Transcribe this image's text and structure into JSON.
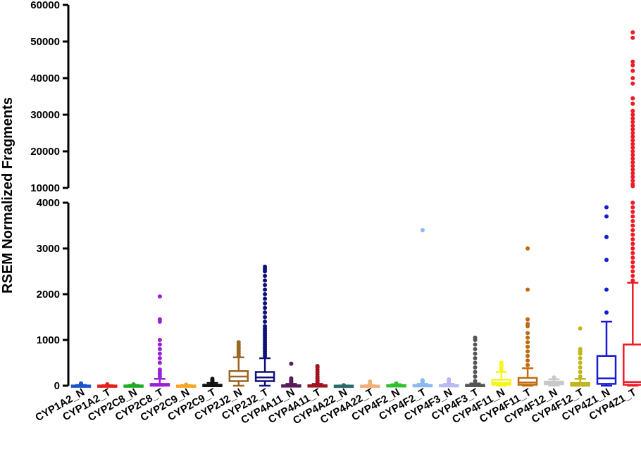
{
  "chart_data": {
    "type": "box",
    "ylabel": "RSEM Normalized Fragments",
    "xlabel": "",
    "y_axis_break": {
      "lower_range": [
        0,
        4000
      ],
      "upper_range": [
        10000,
        60000
      ]
    },
    "lower_ticks": [
      "0",
      "1000",
      "2000",
      "3000",
      "4000"
    ],
    "upper_ticks": [
      "10000",
      "20000",
      "30000",
      "40000",
      "50000",
      "60000"
    ],
    "lower_tick_values": [
      0,
      1000,
      2000,
      3000,
      4000
    ],
    "upper_tick_values": [
      10000,
      20000,
      30000,
      40000,
      50000,
      60000
    ],
    "categories": [
      {
        "label": "CYP1A2_N",
        "color": "#1a56c8",
        "q1": 0,
        "median": 2,
        "q3": 5,
        "whisker_low": 0,
        "whisker_high": 15,
        "outliers": [
          20,
          30,
          40,
          50
        ]
      },
      {
        "label": "CYP1A2_T",
        "color": "#e8201a",
        "q1": 0,
        "median": 2,
        "q3": 5,
        "whisker_low": 0,
        "whisker_high": 10,
        "outliers": [
          20,
          30
        ]
      },
      {
        "label": "CYP2C8_N",
        "color": "#1faa1f",
        "q1": 0,
        "median": 2,
        "q3": 6,
        "whisker_low": 0,
        "whisker_high": 15,
        "outliers": [
          20,
          30
        ]
      },
      {
        "label": "CYP2C8_T",
        "color": "#9b1fd6",
        "q1": 0,
        "median": 10,
        "q3": 40,
        "whisker_low": 0,
        "whisker_high": 150,
        "outliers": [
          200,
          250,
          300,
          350,
          500,
          600,
          700,
          800,
          900,
          1000,
          1400,
          1450,
          1950
        ]
      },
      {
        "label": "CYP2C9_N",
        "color": "#f5a623",
        "q1": 0,
        "median": 2,
        "q3": 5,
        "whisker_low": 0,
        "whisker_high": 12,
        "outliers": [
          20,
          25
        ]
      },
      {
        "label": "CYP2C9_T",
        "color": "#111111",
        "q1": 0,
        "median": 5,
        "q3": 20,
        "whisker_low": 0,
        "whisker_high": 60,
        "outliers": [
          80,
          100,
          120,
          150
        ]
      },
      {
        "label": "CYP2J2_N",
        "color": "#9a6620",
        "q1": 100,
        "median": 200,
        "q3": 320,
        "whisker_low": 0,
        "whisker_high": 620,
        "outliers": [
          650,
          700,
          750,
          800,
          850,
          900,
          950
        ]
      },
      {
        "label": "CYP2J2_T",
        "color": "#10107a",
        "q1": 100,
        "median": 180,
        "q3": 300,
        "whisker_low": 0,
        "whisker_high": 600,
        "outliers": [
          650,
          700,
          750,
          800,
          850,
          900,
          950,
          1000,
          1050,
          1100,
          1150,
          1200,
          1250,
          1300,
          1400,
          1500,
          1600,
          1700,
          1800,
          1900,
          2000,
          2100,
          2200,
          2300,
          2400,
          2500,
          2550,
          2600
        ]
      },
      {
        "label": "CYP4A11_N",
        "color": "#5a1a5a",
        "q1": 0,
        "median": 2,
        "q3": 10,
        "whisker_low": 0,
        "whisker_high": 40,
        "outliers": [
          80,
          120,
          160,
          480
        ]
      },
      {
        "label": "CYP4A11_T",
        "color": "#a0141e",
        "q1": 0,
        "median": 2,
        "q3": 10,
        "whisker_low": 0,
        "whisker_high": 40,
        "outliers": [
          80,
          120,
          160,
          200,
          250,
          300,
          350,
          400,
          430
        ]
      },
      {
        "label": "CYP4A22_N",
        "color": "#2a6a6a",
        "q1": 0,
        "median": 1,
        "q3": 2,
        "whisker_low": 0,
        "whisker_high": 5,
        "outliers": [
          10
        ]
      },
      {
        "label": "CYP4A22_T",
        "color": "#f0b07a",
        "q1": 0,
        "median": 1,
        "q3": 3,
        "whisker_low": 0,
        "whisker_high": 10,
        "outliers": [
          40,
          70,
          90
        ]
      },
      {
        "label": "CYP4F2_N",
        "color": "#2ec02e",
        "q1": 0,
        "median": 5,
        "q3": 12,
        "whisker_low": 0,
        "whisker_high": 30,
        "outliers": [
          40,
          50
        ]
      },
      {
        "label": "CYP4F2_T",
        "color": "#8ab8f0",
        "q1": 0,
        "median": 5,
        "q3": 15,
        "whisker_low": 0,
        "whisker_high": 40,
        "outliers": [
          60,
          80,
          100,
          120,
          3400
        ]
      },
      {
        "label": "CYP4F3_N",
        "color": "#b8b8f5",
        "q1": 0,
        "median": 5,
        "q3": 15,
        "whisker_low": 0,
        "whisker_high": 40,
        "outliers": [
          60,
          80,
          100,
          120,
          140
        ]
      },
      {
        "label": "CYP4F3_T",
        "color": "#555555",
        "q1": 0,
        "median": 5,
        "q3": 20,
        "whisker_low": 0,
        "whisker_high": 50,
        "outliers": [
          100,
          200,
          300,
          400,
          500,
          600,
          700,
          800,
          900,
          1000,
          1050
        ]
      },
      {
        "label": "CYP4F11_N",
        "color": "#f5f51a",
        "q1": 20,
        "median": 60,
        "q3": 130,
        "whisker_low": 0,
        "whisker_high": 300,
        "outliers": [
          350,
          400,
          450,
          500
        ]
      },
      {
        "label": "CYP4F11_T",
        "color": "#c06a10",
        "q1": 20,
        "median": 70,
        "q3": 170,
        "whisker_low": 0,
        "whisker_high": 380,
        "outliers": [
          450,
          550,
          650,
          750,
          850,
          950,
          1050,
          1150,
          1300,
          1350,
          1450,
          2100,
          3000
        ]
      },
      {
        "label": "CYP4F12_N",
        "color": "#c8c8c8",
        "q1": 30,
        "median": 60,
        "q3": 90,
        "whisker_low": 0,
        "whisker_high": 140,
        "outliers": [
          160,
          180
        ]
      },
      {
        "label": "CYP4F12_T",
        "color": "#c0b41a",
        "q1": 0,
        "median": 20,
        "q3": 60,
        "whisker_low": 0,
        "whisker_high": 150,
        "outliers": [
          200,
          300,
          400,
          500,
          600,
          700,
          750,
          800,
          1250
        ]
      },
      {
        "label": "CYP4Z1_N",
        "color": "#1a1ad6",
        "q1": 40,
        "median": 160,
        "q3": 650,
        "whisker_low": 0,
        "whisker_high": 1400,
        "outliers": [
          1600,
          2100,
          2750,
          3250,
          3700,
          3900
        ]
      },
      {
        "label": "CYP4Z1_T",
        "color": "#ee1c24",
        "q1": 20,
        "median": 80,
        "q3": 900,
        "whisker_low": 0,
        "whisker_high": 2250,
        "outliers": [
          2300,
          2400,
          2500,
          2600,
          2700,
          2800,
          2900,
          3000,
          3100,
          3200,
          3300,
          3400,
          3500,
          3600,
          3700,
          3800,
          3900,
          4000,
          10500,
          11000,
          12000,
          13000,
          14000,
          15000,
          16000,
          17000,
          18000,
          19000,
          20000,
          21000,
          22000,
          23000,
          24000,
          25000,
          26000,
          27000,
          28000,
          29000,
          30000,
          31000,
          33000,
          34500,
          38500,
          40000,
          42000,
          43500,
          44500,
          51000,
          52500
        ]
      }
    ]
  }
}
